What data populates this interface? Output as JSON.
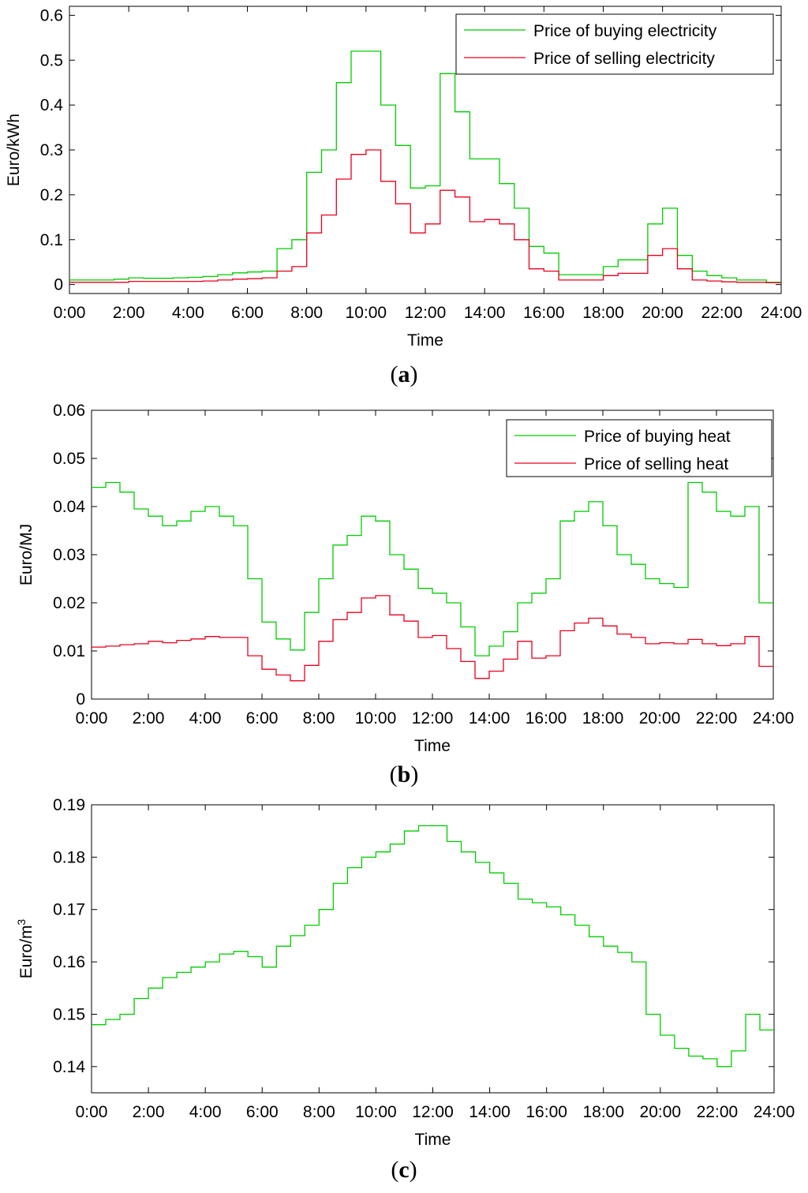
{
  "colors": {
    "green": "#00cc00",
    "red": "#e8001c",
    "axis": "#000000"
  },
  "panels": [
    {
      "caption_open": "(",
      "caption_letter": "a",
      "caption_close": ")",
      "chart_data": {
        "type": "line",
        "step": true,
        "xlabel": "Time",
        "ylabel": "Euro/kWh",
        "x_ticks": [
          "0:00",
          "2:00",
          "4:00",
          "6:00",
          "8:00",
          "10:00",
          "12:00",
          "14:00",
          "16:00",
          "18:00",
          "20:00",
          "22:00",
          "24:00"
        ],
        "y_ticks": [
          "0",
          "0.1",
          "0.2",
          "0.3",
          "0.4",
          "0.5",
          "0.6"
        ],
        "xlim": [
          0,
          24
        ],
        "ylim": [
          -0.02,
          0.62
        ],
        "legend_position": "top-right",
        "series": [
          {
            "name": "Price of buying electricity",
            "color_key": "green",
            "values": [
              0.01,
              0.01,
              0.01,
              0.012,
              0.015,
              0.014,
              0.014,
              0.015,
              0.016,
              0.018,
              0.022,
              0.026,
              0.028,
              0.03,
              0.08,
              0.1,
              0.25,
              0.3,
              0.45,
              0.52,
              0.52,
              0.4,
              0.31,
              0.215,
              0.22,
              0.47,
              0.385,
              0.28,
              0.28,
              0.225,
              0.17,
              0.085,
              0.07,
              0.022,
              0.022,
              0.022,
              0.04,
              0.055,
              0.055,
              0.135,
              0.17,
              0.065,
              0.03,
              0.02,
              0.015,
              0.01,
              0.01,
              0.005
            ]
          },
          {
            "name": "Price of selling electricity",
            "color_key": "red",
            "values": [
              0.005,
              0.005,
              0.005,
              0.005,
              0.007,
              0.007,
              0.007,
              0.007,
              0.007,
              0.008,
              0.01,
              0.012,
              0.013,
              0.015,
              0.03,
              0.04,
              0.115,
              0.155,
              0.235,
              0.29,
              0.3,
              0.23,
              0.18,
              0.115,
              0.135,
              0.21,
              0.195,
              0.14,
              0.145,
              0.135,
              0.1,
              0.035,
              0.03,
              0.01,
              0.01,
              0.01,
              0.02,
              0.025,
              0.025,
              0.065,
              0.08,
              0.035,
              0.01,
              0.008,
              0.006,
              0.005,
              0.005,
              0.004
            ]
          }
        ]
      }
    },
    {
      "caption_open": "(",
      "caption_letter": "b",
      "caption_close": ")",
      "chart_data": {
        "type": "line",
        "step": true,
        "xlabel": "Time",
        "ylabel": "Euro/MJ",
        "x_ticks": [
          "0:00",
          "2:00",
          "4:00",
          "6:00",
          "8:00",
          "10:00",
          "12:00",
          "14:00",
          "16:00",
          "18:00",
          "20:00",
          "22:00",
          "24:00"
        ],
        "y_ticks": [
          "0",
          "0.01",
          "0.02",
          "0.03",
          "0.04",
          "0.05",
          "0.06"
        ],
        "xlim": [
          0,
          24
        ],
        "ylim": [
          0,
          0.06
        ],
        "legend_position": "top-right",
        "series": [
          {
            "name": "Price of buying heat",
            "color_key": "green",
            "values": [
              0.044,
              0.045,
              0.043,
              0.0395,
              0.038,
              0.036,
              0.037,
              0.039,
              0.04,
              0.038,
              0.036,
              0.025,
              0.016,
              0.0125,
              0.0102,
              0.018,
              0.025,
              0.032,
              0.034,
              0.038,
              0.037,
              0.03,
              0.027,
              0.023,
              0.022,
              0.02,
              0.015,
              0.009,
              0.011,
              0.014,
              0.02,
              0.022,
              0.025,
              0.037,
              0.039,
              0.041,
              0.036,
              0.03,
              0.028,
              0.025,
              0.024,
              0.0232,
              0.045,
              0.043,
              0.039,
              0.038,
              0.04,
              0.02
            ]
          },
          {
            "name": "Price of selling heat",
            "color_key": "red",
            "values": [
              0.0108,
              0.011,
              0.0113,
              0.0115,
              0.012,
              0.0117,
              0.0122,
              0.0125,
              0.013,
              0.0128,
              0.0128,
              0.009,
              0.0062,
              0.005,
              0.0038,
              0.007,
              0.012,
              0.0165,
              0.018,
              0.021,
              0.0215,
              0.0175,
              0.0162,
              0.0128,
              0.0132,
              0.0105,
              0.0078,
              0.0043,
              0.0058,
              0.0083,
              0.012,
              0.0085,
              0.009,
              0.0142,
              0.0158,
              0.0168,
              0.0152,
              0.0135,
              0.0128,
              0.0115,
              0.0117,
              0.0115,
              0.0124,
              0.0115,
              0.0111,
              0.0115,
              0.013,
              0.0068
            ]
          }
        ]
      }
    },
    {
      "caption_open": "(",
      "caption_letter": "c",
      "caption_close": ")",
      "chart_data": {
        "type": "line",
        "step": true,
        "xlabel": "Time",
        "ylabel": "Euro/m",
        "ylabel_superscript": "3",
        "x_ticks": [
          "0:00",
          "2:00",
          "4:00",
          "6:00",
          "8:00",
          "10:00",
          "12:00",
          "14:00",
          "16:00",
          "18:00",
          "20:00",
          "22:00",
          "24:00"
        ],
        "y_ticks": [
          "0.14",
          "0.15",
          "0.16",
          "0.17",
          "0.18",
          "0.19"
        ],
        "xlim": [
          0,
          24
        ],
        "ylim": [
          0.135,
          0.19
        ],
        "series": [
          {
            "color_key": "green",
            "values": [
              0.148,
              0.149,
              0.15,
              0.153,
              0.155,
              0.157,
              0.158,
              0.159,
              0.16,
              0.1615,
              0.162,
              0.161,
              0.159,
              0.163,
              0.165,
              0.167,
              0.17,
              0.175,
              0.178,
              0.18,
              0.181,
              0.1825,
              0.185,
              0.186,
              0.186,
              0.183,
              0.181,
              0.179,
              0.177,
              0.175,
              0.172,
              0.1713,
              0.1705,
              0.169,
              0.167,
              0.1648,
              0.163,
              0.1618,
              0.16,
              0.15,
              0.146,
              0.1435,
              0.142,
              0.1415,
              0.14,
              0.143,
              0.15,
              0.147
            ]
          }
        ]
      }
    }
  ]
}
